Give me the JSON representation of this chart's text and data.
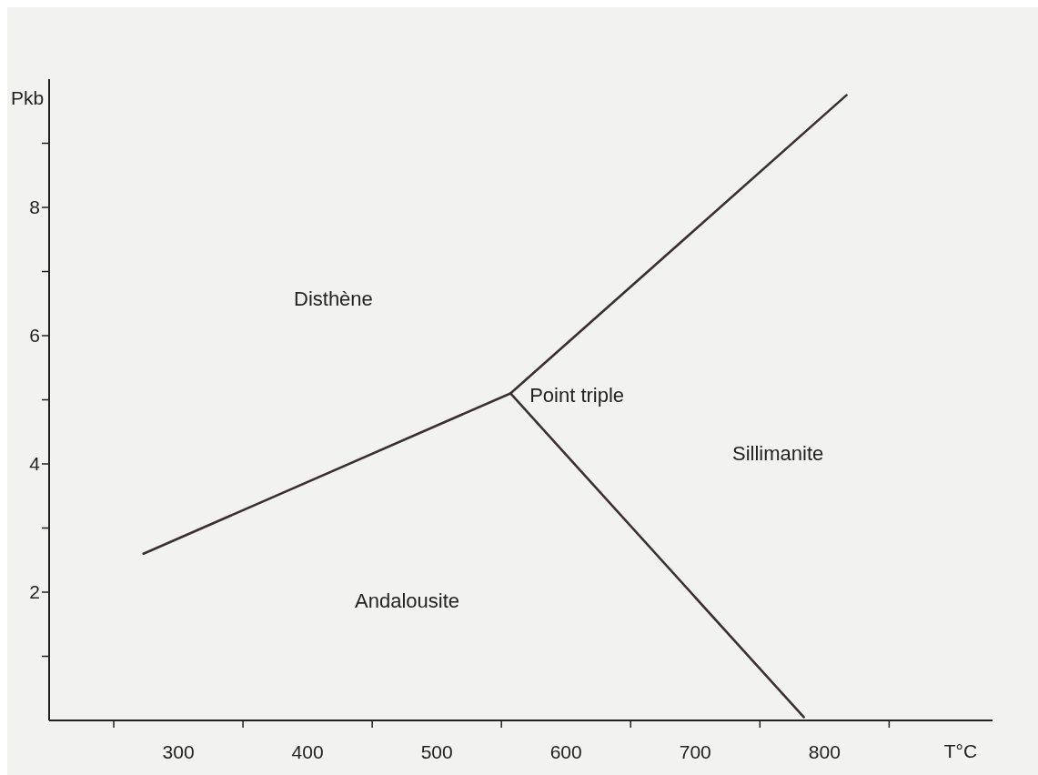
{
  "chart_data": {
    "type": "line",
    "xlabel": "T°C",
    "ylabel": "Pkb",
    "series": [
      {
        "color": "#3a3030",
        "x": [
          273,
          557,
          817
        ],
        "values": [
          2.6,
          5.1,
          9.75
        ]
      },
      {
        "color": "#3a3030",
        "x": [
          557,
          784
        ],
        "values": [
          5.1,
          0.05
        ]
      }
    ],
    "xlim": [
      200,
      930
    ],
    "ylim": [
      0,
      10
    ],
    "xticks": [
      {
        "value": 250,
        "label": null
      },
      300,
      {
        "value": 350,
        "label": null
      },
      400,
      {
        "value": 450,
        "label": null
      },
      500,
      {
        "value": 550,
        "label": null
      },
      600,
      {
        "value": 650,
        "label": null
      },
      700,
      {
        "value": 750,
        "label": null
      },
      800,
      {
        "value": 850,
        "label": null
      }
    ],
    "yticks": [
      {
        "value": 1,
        "label": null
      },
      2,
      {
        "value": 3,
        "label": null
      },
      4,
      {
        "value": 5,
        "label": null
      },
      6,
      {
        "value": 7,
        "label": null
      },
      8,
      {
        "value": 9,
        "label": null
      }
    ],
    "annotations": [
      "Disthène",
      {
        "text": "Point triple",
        "x": 557,
        "y": 5.1
      },
      "Sillimanite",
      "Andalousite"
    ],
    "grid": false,
    "marker": "none",
    "line_style": "solid"
  }
}
